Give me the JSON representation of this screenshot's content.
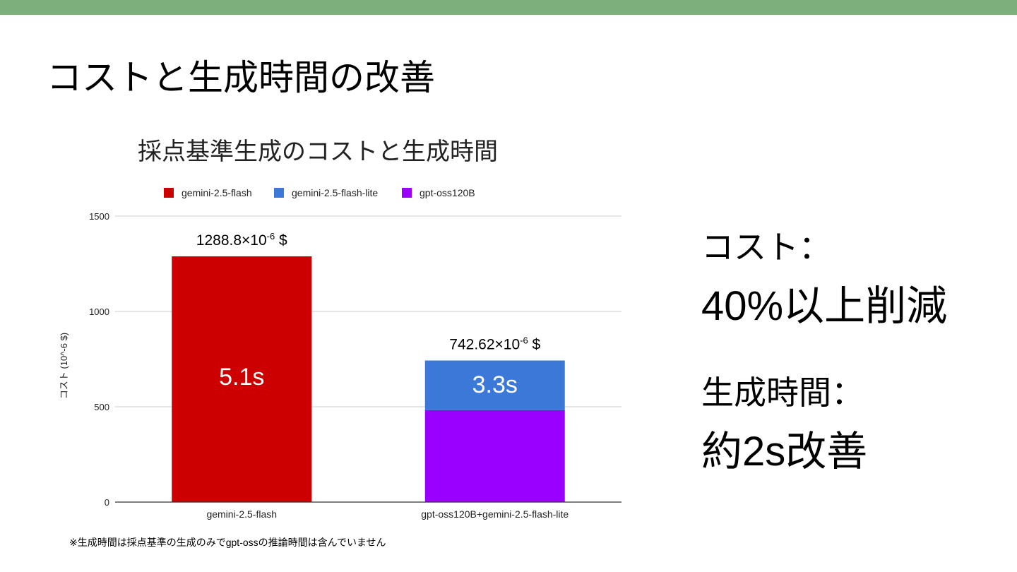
{
  "colors": {
    "accent_bar": "#7daf7d"
  },
  "slide": {
    "title": "コストと生成時間の改善",
    "footnote": "※生成時間は採点基準の生成のみでgpt-ossの推論時間は含んでいません",
    "cost_label": "コスト：",
    "cost_value": "40%以上削減",
    "time_label": "生成時間：",
    "time_value": "約2s改善"
  },
  "chart_data": {
    "type": "bar",
    "stacked": true,
    "title": "採点基準生成のコストと生成時間",
    "ylabel": "コスト (10^-6 $)",
    "xlabel": "",
    "ylim": [
      0,
      1500
    ],
    "yticks": [
      0,
      500,
      1000,
      1500
    ],
    "grid": true,
    "legend_position": "top",
    "categories": [
      "gemini-2.5-flash",
      "gpt-oss120B+gemini-2.5-flash-lite"
    ],
    "series": [
      {
        "name": "gemini-2.5-flash",
        "color": "#cc0000",
        "values": [
          1288.8,
          0
        ]
      },
      {
        "name": "gpt-oss120B",
        "color": "#9900ff",
        "values": [
          0,
          482
        ]
      },
      {
        "name": "gemini-2.5-flash-lite",
        "color": "#3c78d8",
        "values": [
          0,
          260.62
        ]
      }
    ],
    "legend_order": [
      "gemini-2.5-flash",
      "gemini-2.5-flash-lite",
      "gpt-oss120B"
    ],
    "totals": [
      {
        "base": "1288.8×10",
        "exp": "-6",
        "unit": " $"
      },
      {
        "base": "742.62×10",
        "exp": "-6",
        "unit": " $"
      }
    ],
    "time_labels": [
      "5.1s",
      "3.3s"
    ]
  }
}
